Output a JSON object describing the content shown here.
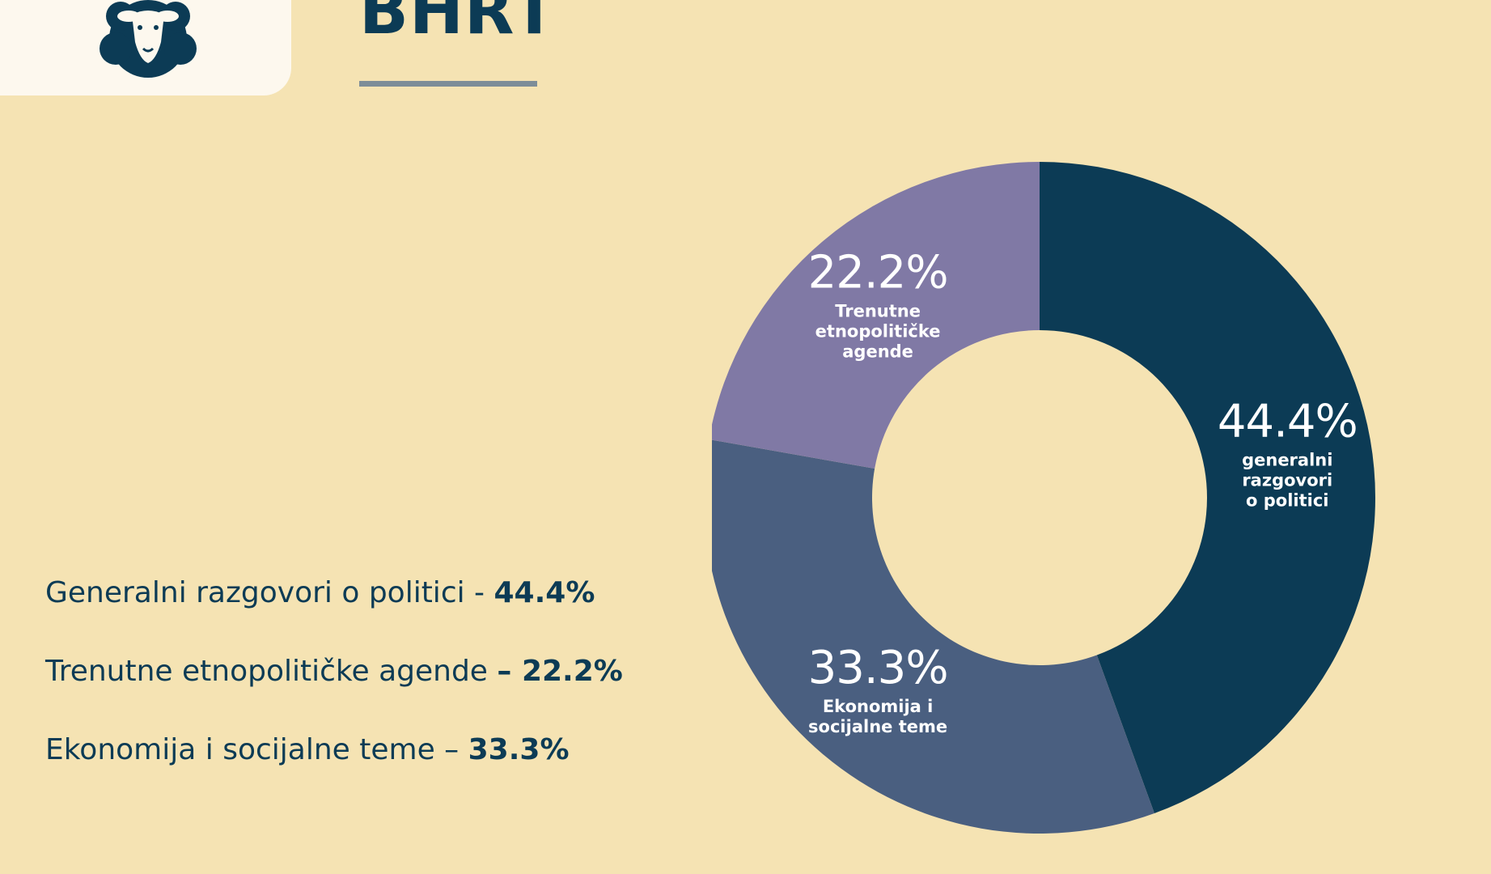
{
  "header": {
    "title": "BHRT"
  },
  "logo": {
    "icon": "sheep-icon"
  },
  "colors": {
    "background": "#f5e3b3",
    "text": "#0c3b55",
    "slice_1": "#0c3b55",
    "slice_2": "#4a5f80",
    "slice_3": "#8079a5"
  },
  "legend": [
    {
      "label": "Generalni razgovori o politici -",
      "value": "44.4%"
    },
    {
      "label": "Trenutne etnopolitičke agende",
      "value": "– 22.2%"
    },
    {
      "label": "Ekonomija i socijalne teme –",
      "value": "33.3%"
    }
  ],
  "chart_data": {
    "type": "pie",
    "variant": "donut",
    "categories": [
      "generalni razgovori o politici",
      "Ekonomija i socijalne teme",
      "Trenutne etnopolitičke agende"
    ],
    "values": [
      44.4,
      33.3,
      22.2
    ],
    "labels": [
      "44.4%",
      "33.3%",
      "22.2%"
    ],
    "captions": [
      [
        "generalni",
        "razgovori",
        "o politici"
      ],
      [
        "Ekonomija i",
        "socijalne teme"
      ],
      [
        "Trenutne",
        "etnopolitičke",
        "agende"
      ]
    ],
    "colors": [
      "#0c3b55",
      "#4a5f80",
      "#8079a5"
    ],
    "start_angle_deg": 0,
    "direction": "clockwise"
  }
}
